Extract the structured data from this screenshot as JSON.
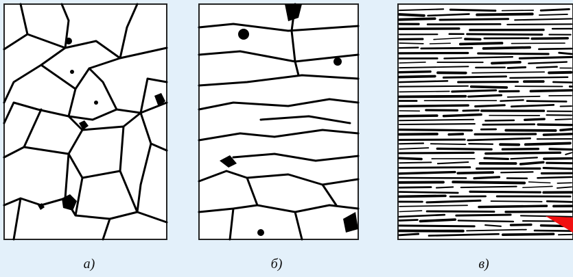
{
  "figure": {
    "panels": [
      {
        "label": "а)"
      },
      {
        "label": "б)"
      },
      {
        "label": "в)"
      }
    ]
  }
}
